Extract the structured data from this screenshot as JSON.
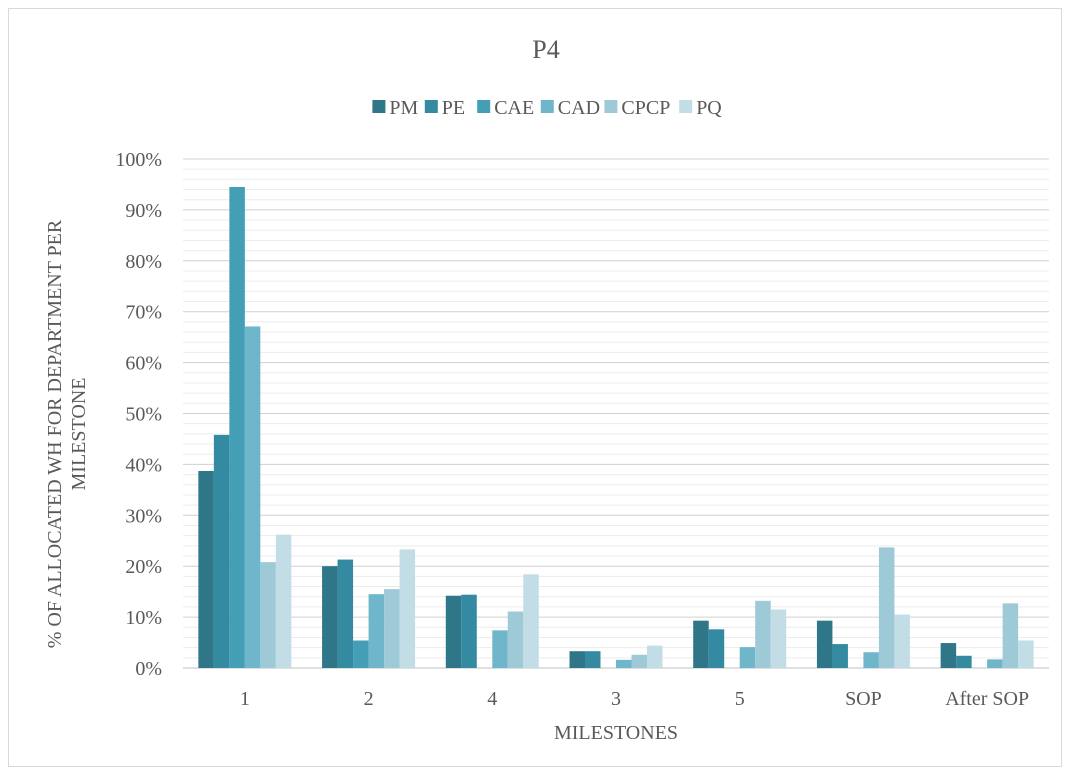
{
  "chart_data": {
    "type": "bar",
    "title": "P4",
    "xlabel": "MILESTONES",
    "ylabel": "% OF ALLOCATED WH FOR DEPARTMENT PER MILESTONE",
    "ylim": [
      0,
      100
    ],
    "ytick_labels": [
      "0%",
      "10%",
      "20%",
      "30%",
      "40%",
      "50%",
      "60%",
      "70%",
      "80%",
      "90%",
      "100%"
    ],
    "legend_position": "top",
    "grid": true,
    "categories": [
      "1",
      "2",
      "4",
      "3",
      "5",
      "SOP",
      "After SOP"
    ],
    "series": [
      {
        "name": "PM",
        "color": "#2f7688",
        "values": [
          38.7,
          20.0,
          14.2,
          3.3,
          9.3,
          9.3,
          4.9
        ]
      },
      {
        "name": "PE",
        "color": "#348aa1",
        "values": [
          45.8,
          21.3,
          14.4,
          3.3,
          7.6,
          4.7,
          2.4
        ]
      },
      {
        "name": "CAE",
        "color": "#449fb6",
        "values": [
          94.5,
          5.4,
          0,
          0,
          0,
          0,
          0
        ]
      },
      {
        "name": "CAD",
        "color": "#6fb6cb",
        "values": [
          67.1,
          14.5,
          7.4,
          1.6,
          4.1,
          3.1,
          1.7
        ]
      },
      {
        "name": "CPCP",
        "color": "#9ecad8",
        "values": [
          20.8,
          15.5,
          11.1,
          2.6,
          13.2,
          23.7,
          12.7
        ]
      },
      {
        "name": "PQ",
        "color": "#c2dde6",
        "values": [
          26.2,
          23.3,
          18.4,
          4.4,
          11.5,
          10.5,
          5.4
        ]
      }
    ]
  }
}
